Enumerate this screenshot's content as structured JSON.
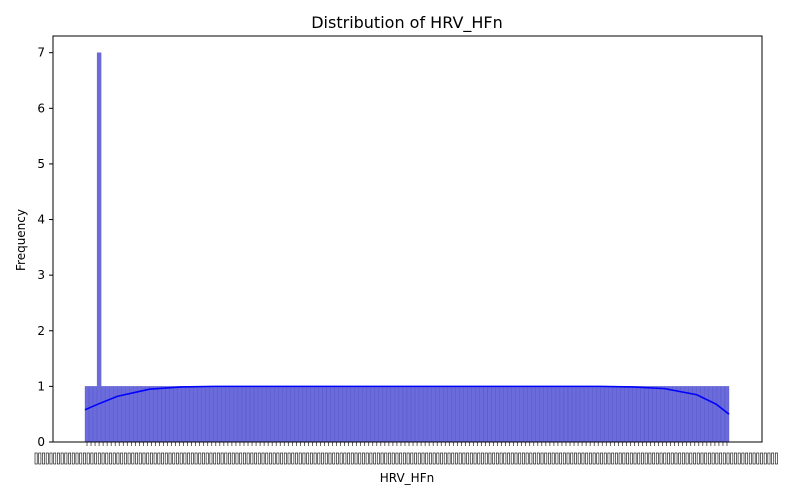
{
  "chart_data": {
    "type": "bar",
    "title": "Distribution of HRV_HFn",
    "xlabel": "HRV_HFn",
    "ylabel": "Frequency",
    "ylim": [
      0,
      7.3
    ],
    "yticks": [
      "0",
      "1",
      "2",
      "3",
      "4",
      "5",
      "6",
      "7"
    ],
    "grid": false,
    "legend": "none",
    "bin_count": 160,
    "spike_bin": 3,
    "bin_value": 1,
    "spike_value": 7,
    "kde": {
      "x": [
        0,
        0.02,
        0.05,
        0.1,
        0.15,
        0.2,
        0.3,
        0.4,
        0.5,
        0.6,
        0.7,
        0.8,
        0.85,
        0.9,
        0.95,
        0.98,
        1.0
      ],
      "y": [
        0.58,
        0.68,
        0.82,
        0.95,
        0.99,
        1.0,
        1.0,
        1.0,
        1.0,
        1.0,
        1.0,
        1.0,
        0.99,
        0.96,
        0.85,
        0.68,
        0.5
      ]
    },
    "colors": {
      "bar_fill": "#6b6bdc",
      "bar_edge": "#4d4dc0",
      "kde_line": "#0000ff"
    }
  }
}
